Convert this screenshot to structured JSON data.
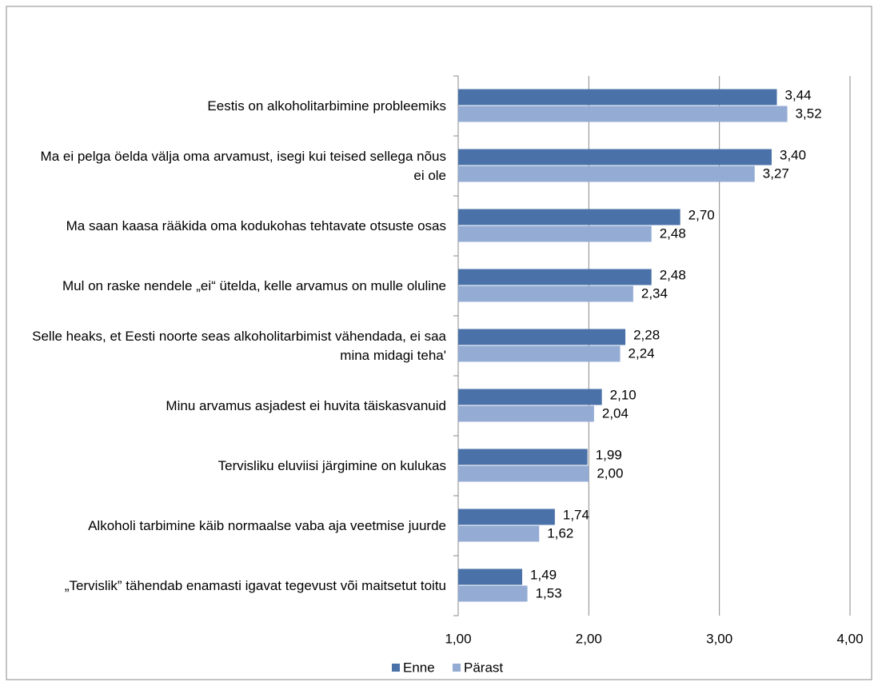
{
  "chart_data": {
    "type": "bar",
    "orientation": "horizontal",
    "categories": [
      "Eestis on alkoholitarbimine probleemiks",
      "Ma ei pelga öelda välja oma arvamust, isegi kui teised sellega nõus ei ole",
      "Ma saan kaasa rääkida oma kodukohas tehtavate otsuste osas",
      "Mul on raske nendele „ei“ ütelda, kelle arvamus on mulle oluline",
      "Selle heaks, et Eesti noorte seas alkoholitarbimist vähendada, ei saa mina midagi teha'",
      "Minu arvamus asjadest ei huvita täiskasvanuid",
      "Tervisliku eluviisi järgimine on kulukas",
      "Alkoholi tarbimine käib normaalse vaba aja veetmise juurde",
      "„Tervislik” tähendab enamasti igavat tegevust või maitsetut toitu"
    ],
    "series": [
      {
        "name": "Enne",
        "color": "#4a72a8",
        "values": [
          3.44,
          3.4,
          2.7,
          2.48,
          2.28,
          2.1,
          1.99,
          1.74,
          1.49
        ],
        "value_labels": [
          "3,44",
          "3,40",
          "2,70",
          "2,48",
          "2,28",
          "2,10",
          "1,99",
          "1,74",
          "1,49"
        ]
      },
      {
        "name": "Pärast",
        "color": "#94acd4",
        "values": [
          3.52,
          3.27,
          2.48,
          2.34,
          2.24,
          2.04,
          2.0,
          1.62,
          1.53
        ],
        "value_labels": [
          "3,52",
          "3,27",
          "2,48",
          "2,34",
          "2,24",
          "2,04",
          "2,00",
          "1,62",
          "1,53"
        ]
      }
    ],
    "xlim": [
      1,
      4
    ],
    "xticks": [
      {
        "value": 1,
        "label": "1,00"
      },
      {
        "value": 2,
        "label": "2,00"
      },
      {
        "value": 3,
        "label": "3,00"
      },
      {
        "value": 4,
        "label": "4,00"
      }
    ],
    "grid": true,
    "legend": "bottom"
  }
}
